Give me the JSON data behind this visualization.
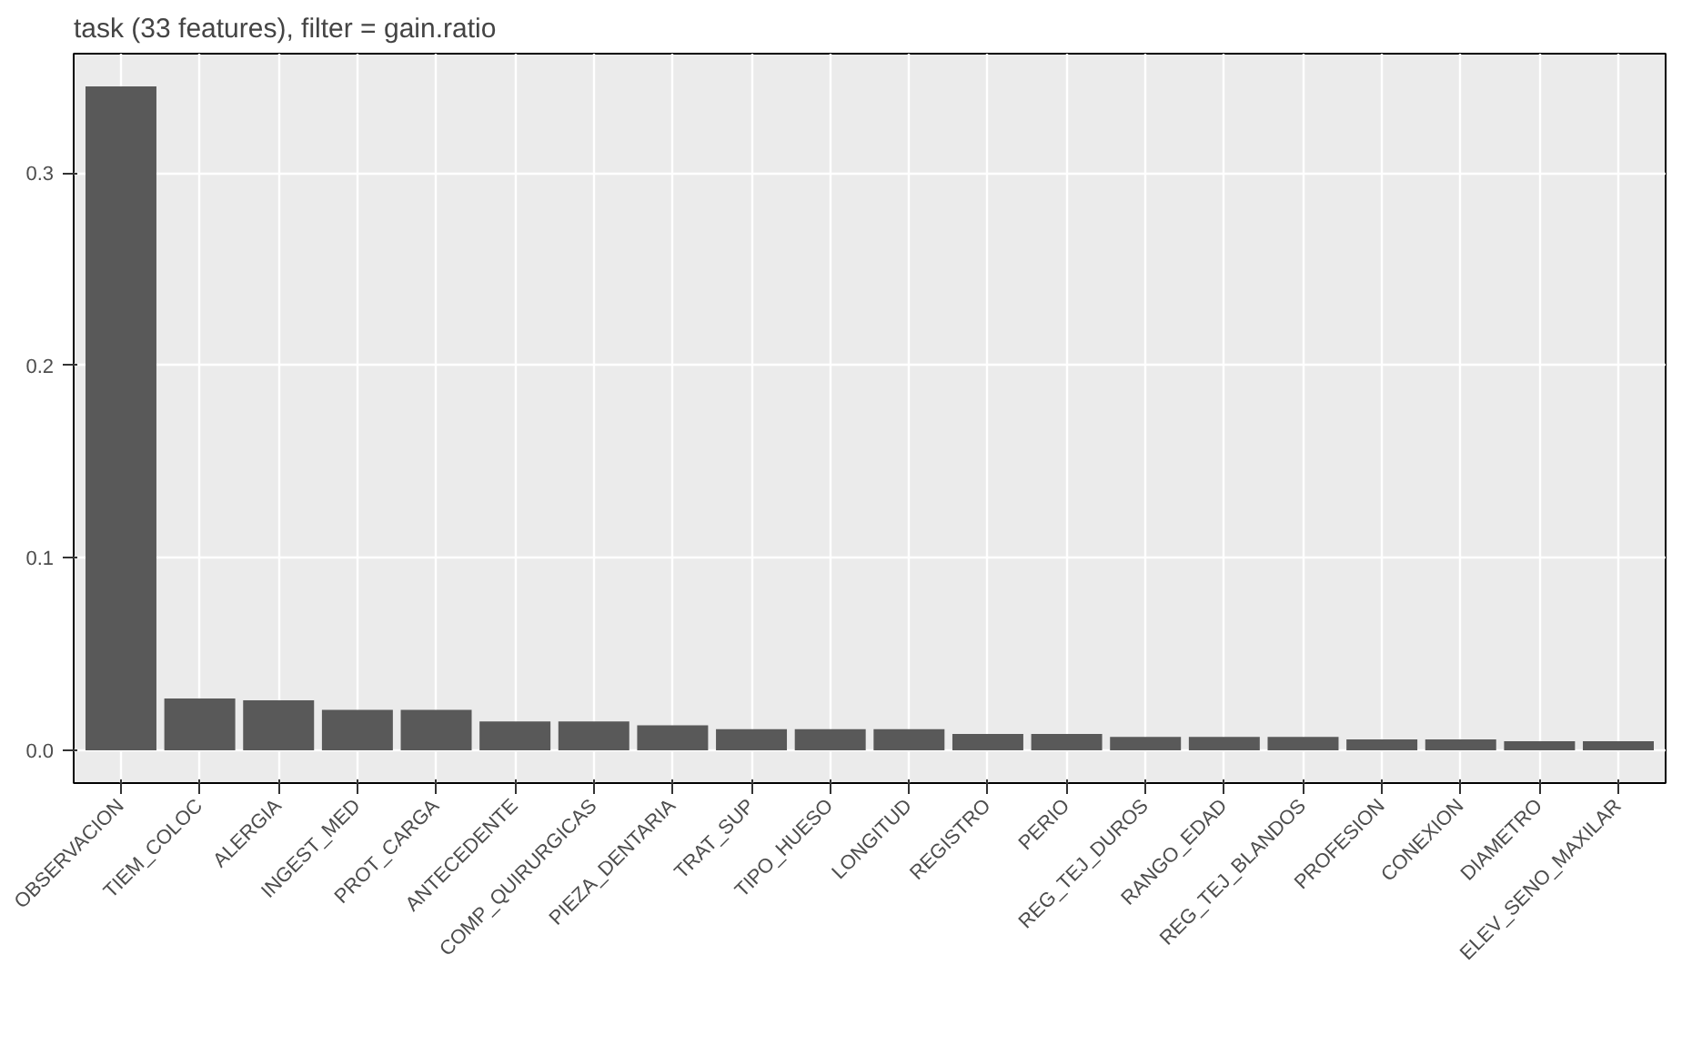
{
  "chart_data": {
    "type": "bar",
    "title": "task (33 features), filter = gain.ratio",
    "categories": [
      "OBSERVACION",
      "TIEM_COLOC",
      "ALERGIA",
      "INGEST_MED",
      "PROT_CARGA",
      "ANTECEDENTE",
      "COMP_QUIRURGICAS",
      "PIEZA_DENTARIA",
      "TRAT_SUP",
      "TIPO_HUESO",
      "LONGITUD",
      "REGISTRO",
      "PERIO",
      "REG_TEJ_DUROS",
      "RANGO_EDAD",
      "REG_TEJ_BLANDOS",
      "PROFESION",
      "CONEXION",
      "DIAMETRO",
      "ELEV_SENO_MAXILAR"
    ],
    "values": [
      0.345,
      0.027,
      0.026,
      0.021,
      0.021,
      0.015,
      0.015,
      0.013,
      0.011,
      0.011,
      0.011,
      0.0085,
      0.0085,
      0.007,
      0.007,
      0.007,
      0.0057,
      0.0057,
      0.0047,
      0.0047
    ],
    "color": "#595959",
    "ylim": [
      -0.017,
      0.362
    ],
    "yticks": [
      {
        "value": 0,
        "label": "0.0"
      },
      0.1,
      0.2,
      0.3
    ],
    "grid": true
  }
}
